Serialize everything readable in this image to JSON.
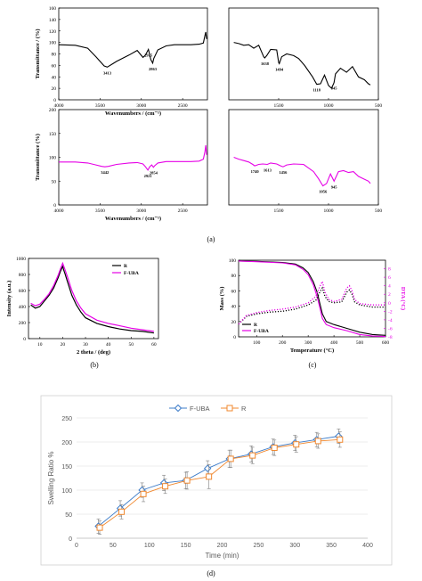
{
  "panel_labels": {
    "a": "(a)",
    "b": "(b)",
    "c": "(c)",
    "d": "(d)"
  },
  "chart_data": [
    {
      "type": "line",
      "panel": "a",
      "subplot": "top-left",
      "ylabel": "Transmittance / (%)",
      "xlabel": "Wavenumbers / (cm⁻¹)",
      "xlim": [
        4000,
        2200
      ],
      "ylim": [
        0,
        160
      ],
      "yticks": [
        0,
        20,
        40,
        60,
        80,
        100,
        120,
        140,
        160
      ],
      "xticks": [
        4000,
        3500,
        3000,
        2500
      ],
      "color": "#000000",
      "x": [
        4000,
        3800,
        3650,
        3550,
        3450,
        3413,
        3300,
        3150,
        3050,
        2980,
        2950,
        2915,
        2885,
        2870,
        2863,
        2850,
        2800,
        2700,
        2600,
        2500,
        2400,
        2300,
        2250,
        2230,
        2220,
        2210
      ],
      "y": [
        96,
        95,
        90,
        75,
        59,
        57,
        67,
        78,
        86,
        74,
        78,
        88,
        70,
        66,
        64,
        72,
        87,
        94,
        96,
        96,
        96,
        97,
        99,
        112,
        118,
        106
      ],
      "annotations": [
        {
          "x": 3413,
          "text": "3413"
        },
        {
          "x": 2915,
          "text": "2915"
        },
        {
          "x": 2863,
          "text": "2863"
        }
      ]
    },
    {
      "type": "line",
      "panel": "a",
      "subplot": "top-right",
      "xlim": [
        2000,
        500
      ],
      "ylim": [
        0,
        160
      ],
      "xticks": [
        1500,
        1000,
        500
      ],
      "color": "#000000",
      "x": [
        1950,
        1900,
        1850,
        1800,
        1750,
        1700,
        1650,
        1640,
        1620,
        1580,
        1520,
        1500,
        1494,
        1470,
        1420,
        1350,
        1300,
        1240,
        1160,
        1118,
        1080,
        1040,
        1000,
        970,
        945,
        930,
        880,
        820,
        760,
        700,
        640,
        600,
        580
      ],
      "y": [
        100,
        98,
        95,
        96,
        90,
        95,
        75,
        73,
        77,
        88,
        87,
        65,
        63,
        75,
        80,
        77,
        72,
        60,
        40,
        27,
        28,
        43,
        25,
        20,
        30,
        45,
        55,
        48,
        58,
        40,
        35,
        28,
        26
      ],
      "annotations": [
        {
          "x": 1638,
          "text": "1638"
        },
        {
          "x": 1494,
          "text": "1494"
        },
        {
          "x": 1118,
          "text": "1118"
        },
        {
          "x": 945,
          "text": "945"
        }
      ]
    },
    {
      "type": "line",
      "panel": "a",
      "subplot": "bottom-left",
      "ylabel": "Transmittance (%)",
      "xlabel": "Wavenumbers / (cm⁻¹)",
      "xlim": [
        4000,
        2200
      ],
      "ylim": [
        0,
        200
      ],
      "yticks": [
        0,
        50,
        100,
        150,
        200
      ],
      "xticks": [
        4000,
        3500,
        3000,
        2500
      ],
      "color": "#e600e6",
      "x": [
        4000,
        3800,
        3650,
        3550,
        3480,
        3442,
        3400,
        3300,
        3150,
        3050,
        2980,
        2950,
        2921,
        2900,
        2875,
        2854,
        2840,
        2800,
        2700,
        2600,
        2500,
        2400,
        2300,
        2250,
        2230,
        2220,
        2210
      ],
      "y": [
        90,
        90,
        88,
        84,
        81,
        80,
        81,
        85,
        88,
        89,
        86,
        80,
        73,
        80,
        84,
        79,
        82,
        88,
        91,
        91,
        91,
        91,
        92,
        96,
        112,
        125,
        105
      ],
      "annotations": [
        {
          "x": 3442,
          "text": "3442"
        },
        {
          "x": 2921,
          "text": "2921"
        },
        {
          "x": 2854,
          "text": "2854"
        }
      ]
    },
    {
      "type": "line",
      "panel": "a",
      "subplot": "bottom-right",
      "xlim": [
        2000,
        500
      ],
      "ylim": [
        0,
        200
      ],
      "xticks": [
        1500,
        1000,
        500
      ],
      "color": "#e600e6",
      "x": [
        1950,
        1900,
        1850,
        1800,
        1760,
        1740,
        1700,
        1660,
        1613,
        1580,
        1520,
        1480,
        1456,
        1420,
        1350,
        1250,
        1150,
        1100,
        1056,
        1020,
        980,
        945,
        900,
        850,
        800,
        750,
        700,
        650,
        600,
        580
      ],
      "y": [
        100,
        96,
        93,
        90,
        85,
        82,
        85,
        86,
        85,
        88,
        86,
        82,
        80,
        84,
        86,
        85,
        70,
        55,
        40,
        45,
        65,
        50,
        70,
        72,
        68,
        70,
        60,
        55,
        50,
        45
      ],
      "annotations": [
        {
          "x": 1740,
          "text": "1740"
        },
        {
          "x": 1613,
          "text": "1613"
        },
        {
          "x": 1456,
          "text": "1456"
        },
        {
          "x": 1056,
          "text": "1056"
        },
        {
          "x": 945,
          "text": "945"
        }
      ]
    },
    {
      "type": "line",
      "panel": "b",
      "ylabel": "Intensity (a.u.)",
      "xlabel": "2 theta / (deg)",
      "xlim": [
        5,
        62
      ],
      "ylim": [
        0,
        1000
      ],
      "xticks": [
        10,
        20,
        30,
        40,
        50,
        60
      ],
      "yticks": [
        0,
        200,
        400,
        600,
        800,
        1000
      ],
      "legend_position": "top-right",
      "series": [
        {
          "name": "R",
          "color": "#000000",
          "x": [
            6,
            8,
            10,
            12,
            14,
            16,
            18,
            19,
            20,
            20.5,
            21,
            22,
            24,
            26,
            28,
            30,
            35,
            40,
            45,
            50,
            55,
            60
          ],
          "y": [
            420,
            380,
            400,
            470,
            540,
            630,
            760,
            840,
            900,
            850,
            810,
            720,
            540,
            420,
            330,
            260,
            190,
            150,
            120,
            100,
            90,
            70
          ]
        },
        {
          "name": "F-UBA",
          "color": "#e600e6",
          "x": [
            6,
            8,
            10,
            12,
            14,
            16,
            18,
            19,
            20,
            20.5,
            21,
            22,
            24,
            26,
            28,
            30,
            35,
            40,
            45,
            50,
            55,
            60
          ],
          "y": [
            440,
            410,
            430,
            490,
            560,
            660,
            790,
            870,
            940,
            900,
            860,
            780,
            600,
            470,
            380,
            310,
            230,
            190,
            160,
            130,
            110,
            90
          ]
        }
      ]
    },
    {
      "type": "line",
      "panel": "c",
      "ylabel": "Mass (%)",
      "y2label": "DTA (°C)",
      "xlabel": "Temperature (°C)",
      "xlim": [
        30,
        600
      ],
      "ylim": [
        0,
        100
      ],
      "y2lim": [
        -8,
        10
      ],
      "xticks": [
        100,
        200,
        300,
        400,
        500,
        600
      ],
      "yticks": [
        0,
        20,
        40,
        60,
        80,
        100
      ],
      "y2ticks": [
        -8,
        -6,
        -4,
        -2,
        0,
        2,
        4,
        6,
        8
      ],
      "legend_position": "bottom-left",
      "series": [
        {
          "name": "R",
          "axis": "left",
          "style": "solid",
          "color": "#000000",
          "x": [
            30,
            100,
            200,
            250,
            280,
            300,
            320,
            335,
            345,
            355,
            370,
            400,
            450,
            500,
            550,
            600
          ],
          "y": [
            99,
            98.5,
            97,
            95,
            90,
            84,
            72,
            58,
            44,
            30,
            20,
            16,
            11,
            6,
            3,
            2
          ]
        },
        {
          "name": "F-UBA",
          "axis": "left",
          "style": "solid",
          "color": "#e600e6",
          "x": [
            30,
            100,
            200,
            250,
            280,
            300,
            320,
            335,
            345,
            355,
            370,
            400,
            450,
            500,
            550,
            600
          ],
          "y": [
            99,
            98,
            96.5,
            94,
            88,
            81,
            68,
            52,
            38,
            24,
            16,
            12,
            8,
            3,
            1,
            0.5
          ]
        },
        {
          "series_of": "R",
          "axis": "right",
          "style": "dotted",
          "color": "#000000",
          "x": [
            30,
            60,
            100,
            150,
            200,
            250,
            300,
            330,
            345,
            355,
            365,
            380,
            400,
            430,
            450,
            460,
            470,
            480,
            500,
            550,
            600
          ],
          "y": [
            -5,
            -3.2,
            -2.6,
            -2.2,
            -2,
            -1.5,
            -0.5,
            0.6,
            2.5,
            3.5,
            1.5,
            0.3,
            0,
            0.2,
            2.5,
            3,
            2,
            0.2,
            -0.5,
            -1,
            -1
          ]
        },
        {
          "series_of": "F-UBA",
          "axis": "right",
          "style": "dotted",
          "color": "#e600e6",
          "x": [
            30,
            60,
            100,
            150,
            200,
            250,
            300,
            330,
            345,
            355,
            365,
            380,
            400,
            430,
            450,
            460,
            470,
            480,
            500,
            550,
            600
          ],
          "y": [
            -5,
            -3,
            -2.3,
            -1.8,
            -1.5,
            -1,
            0,
            1.5,
            3.8,
            5,
            2.5,
            0.8,
            0.3,
            0.8,
            3.5,
            4,
            2.8,
            0.8,
            -0.2,
            -0.5,
            -0.5
          ]
        }
      ]
    },
    {
      "type": "line",
      "panel": "d",
      "ylabel": "Swelling Ratio %",
      "xlabel": "Time (min)",
      "xlim": [
        0,
        400
      ],
      "ylim": [
        0,
        250
      ],
      "xticks": [
        0,
        50,
        100,
        150,
        200,
        250,
        300,
        350,
        400
      ],
      "yticks": [
        0,
        50,
        100,
        150,
        200,
        250
      ],
      "grid": true,
      "legend_position": "top",
      "error_bars": true,
      "x": [
        30,
        60,
        90,
        120,
        150,
        180,
        210,
        240,
        270,
        300,
        330,
        360
      ],
      "series": [
        {
          "name": "F-UBA",
          "color": "#3d7cc9",
          "marker": "diamond",
          "y": [
            25,
            62,
            100,
            115,
            120,
            145,
            165,
            175,
            190,
            198,
            205,
            212
          ],
          "err": [
            15,
            16,
            15,
            16,
            17,
            16,
            18,
            17,
            16,
            16,
            15,
            15
          ]
        },
        {
          "name": "R",
          "color": "#f0882f",
          "marker": "square",
          "y": [
            22,
            55,
            92,
            108,
            120,
            128,
            165,
            172,
            188,
            195,
            202,
            205
          ],
          "err": [
            14,
            15,
            16,
            15,
            18,
            25,
            18,
            17,
            16,
            16,
            15,
            16
          ]
        }
      ]
    }
  ]
}
